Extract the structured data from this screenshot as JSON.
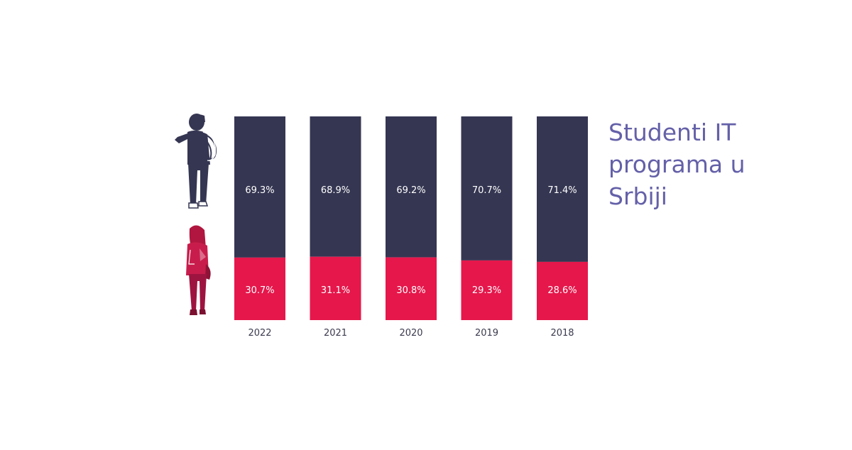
{
  "chart_data": {
    "type": "bar",
    "stacked": true,
    "orientation": "vertical",
    "normalized_percent": true,
    "categories": [
      "2022",
      "2021",
      "2020",
      "2019",
      "2018"
    ],
    "series": [
      {
        "icon": "male-student-icon",
        "color": "#353652",
        "values": [
          69.3,
          68.9,
          69.2,
          70.7,
          71.4
        ]
      },
      {
        "icon": "female-student-icon",
        "color": "#e5174b",
        "values": [
          30.7,
          31.1,
          30.8,
          29.3,
          28.6
        ]
      }
    ],
    "value_labels": {
      "top": [
        "69.3%",
        "68.9%",
        "69.2%",
        "70.7%",
        "71.4%"
      ],
      "bottom": [
        "30.7%",
        "31.1%",
        "30.8%",
        "29.3%",
        "28.6%"
      ]
    },
    "title_lines": [
      "Studenti IT",
      "programa u",
      "Srbiji"
    ],
    "grid": false,
    "legend": "icons-left"
  },
  "colors": {
    "top_segment": "#353652",
    "bottom_segment": "#e5174b",
    "title": "#6460a8",
    "tick_label": "#3a3a4f",
    "value_label": "#ffffff"
  }
}
